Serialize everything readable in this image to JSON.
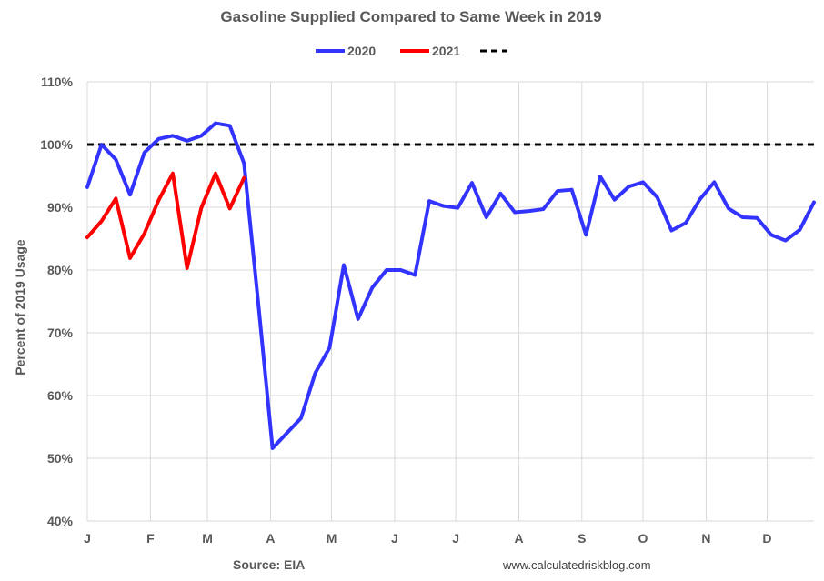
{
  "chart_data": {
    "type": "line",
    "title": "Gasoline Supplied Compared to Same Week in 2019",
    "xlabel": "",
    "ylabel": "Percent of 2019 Usage",
    "ylim": [
      40,
      110
    ],
    "y_ticks": [
      "40%",
      "50%",
      "60%",
      "70%",
      "80%",
      "90%",
      "100%",
      "110%"
    ],
    "y_tick_values": [
      40,
      50,
      60,
      70,
      80,
      90,
      100,
      110
    ],
    "x_ticks": [
      "J",
      "F",
      "M",
      "A",
      "M",
      "J",
      "J",
      "A",
      "S",
      "O",
      "N",
      "D"
    ],
    "x_tick_weeks": [
      0,
      4.43,
      8.43,
      12.86,
      17.14,
      21.57,
      25.86,
      30.29,
      34.71,
      39.0,
      43.43,
      47.71
    ],
    "x_unit": "week of year",
    "x_range": [
      0,
      51
    ],
    "grid": {
      "vertical": true,
      "horizontal": true
    },
    "legend_position": "top-center",
    "reference_line": {
      "value": 100,
      "style": "dashed",
      "color": "#000000"
    },
    "series": [
      {
        "name": "2020",
        "color": "#3333ff",
        "values": [
          93.2,
          100.0,
          97.6,
          92.0,
          98.7,
          100.9,
          101.4,
          100.6,
          101.4,
          103.4,
          103.0,
          97.0,
          74.7,
          51.6,
          54.0,
          56.4,
          63.6,
          67.6,
          80.8,
          72.2,
          77.2,
          80.0,
          80.0,
          79.2,
          91.0,
          90.2,
          89.9,
          93.9,
          88.4,
          92.2,
          89.2,
          89.4,
          89.7,
          92.6,
          92.8,
          85.6,
          94.9,
          91.2,
          93.3,
          94.0,
          91.6,
          86.3,
          87.5,
          91.3,
          94.0,
          89.8,
          88.4,
          88.3,
          85.6,
          84.7,
          86.4,
          90.8
        ]
      },
      {
        "name": "2021",
        "color": "#ff0000",
        "values": [
          85.2,
          87.8,
          91.4,
          81.9,
          85.8,
          91.1,
          95.4,
          80.3,
          89.9,
          95.4,
          89.8,
          94.7
        ]
      },
      {
        "name": "",
        "color": "#000000",
        "dashed": true,
        "values": [
          100
        ]
      }
    ],
    "source": "Source: EIA",
    "url": "www.calculatedriskblog.com"
  }
}
